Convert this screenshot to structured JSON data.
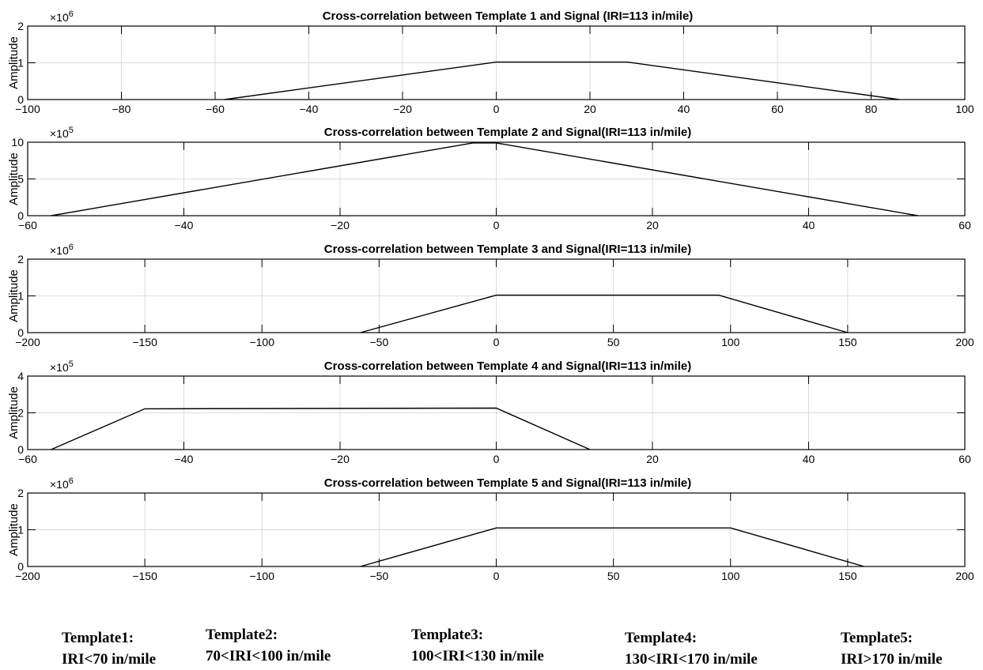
{
  "chart_data": [
    {
      "type": "line",
      "title": "Cross-correlation between Template 1 and Signal (IRI=113 in/mile)",
      "ylabel": "Amplitude",
      "y_exponent": "×10^6",
      "xlim": [
        -100,
        100
      ],
      "ylim": [
        0,
        2
      ],
      "xticks": [
        -100,
        -80,
        -60,
        -40,
        -20,
        0,
        20,
        40,
        60,
        80,
        100
      ],
      "yticks": [
        0,
        1,
        2
      ],
      "grid": true,
      "series": [
        {
          "x": [
            -58,
            0,
            28,
            86
          ],
          "y": [
            0,
            1.02,
            1.02,
            0
          ]
        }
      ]
    },
    {
      "type": "line",
      "title": "Cross-correlation between Template 2 and Signal(IRI=113 in/mile)",
      "ylabel": "Amplitude",
      "y_exponent": "×10^5",
      "xlim": [
        -60,
        60
      ],
      "ylim": [
        0,
        10
      ],
      "xticks": [
        -60,
        -40,
        -20,
        0,
        20,
        40,
        60
      ],
      "yticks": [
        0,
        5,
        10
      ],
      "grid": true,
      "series": [
        {
          "x": [
            -57,
            -3,
            0,
            54
          ],
          "y": [
            0,
            9.9,
            9.9,
            0
          ]
        }
      ]
    },
    {
      "type": "line",
      "title": "Cross-correlation between Template 3 and Signal(IRI=113 in/mile)",
      "ylabel": "Amplitude",
      "y_exponent": "×10^6",
      "xlim": [
        -200,
        200
      ],
      "ylim": [
        0,
        2
      ],
      "xticks": [
        -200,
        -150,
        -100,
        -50,
        0,
        50,
        100,
        150,
        200
      ],
      "yticks": [
        0,
        1,
        2
      ],
      "grid": true,
      "series": [
        {
          "x": [
            -58,
            0,
            95,
            150
          ],
          "y": [
            0,
            1.02,
            1.02,
            0
          ]
        }
      ]
    },
    {
      "type": "line",
      "title": "Cross-correlation between Template 4 and Signal(IRI=113 in/mile)",
      "ylabel": "Amplitude",
      "y_exponent": "×10^5",
      "xlim": [
        -60,
        60
      ],
      "ylim": [
        0,
        4
      ],
      "xticks": [
        -60,
        -40,
        -20,
        0,
        20,
        40,
        60
      ],
      "yticks": [
        0,
        2,
        4
      ],
      "grid": true,
      "series": [
        {
          "x": [
            -57,
            -45,
            0,
            12
          ],
          "y": [
            0,
            2.22,
            2.26,
            0
          ]
        }
      ]
    },
    {
      "type": "line",
      "title": "Cross-correlation between Template 5 and Signal(IRI=113 in/mile)",
      "ylabel": "Amplitude",
      "y_exponent": "×10^6",
      "xlim": [
        -200,
        200
      ],
      "ylim": [
        0,
        2
      ],
      "xticks": [
        -200,
        -150,
        -100,
        -50,
        0,
        50,
        100,
        150,
        200
      ],
      "yticks": [
        0,
        1,
        2
      ],
      "grid": true,
      "series": [
        {
          "x": [
            -58,
            0,
            100,
            157
          ],
          "y": [
            0,
            1.05,
            1.05,
            0
          ]
        }
      ]
    }
  ],
  "captions": [
    {
      "title": "Template1:",
      "range": "IRI<70 in/mile"
    },
    {
      "title": "Template2:",
      "range": "70<IRI<100 in/mile"
    },
    {
      "title": "Template3:",
      "range": "100<IRI<130 in/mile"
    },
    {
      "title": "Template4:",
      "range": "130<IRI<170 in/mile"
    },
    {
      "title": "Template5:",
      "range": "IRI>170 in/mile"
    }
  ]
}
